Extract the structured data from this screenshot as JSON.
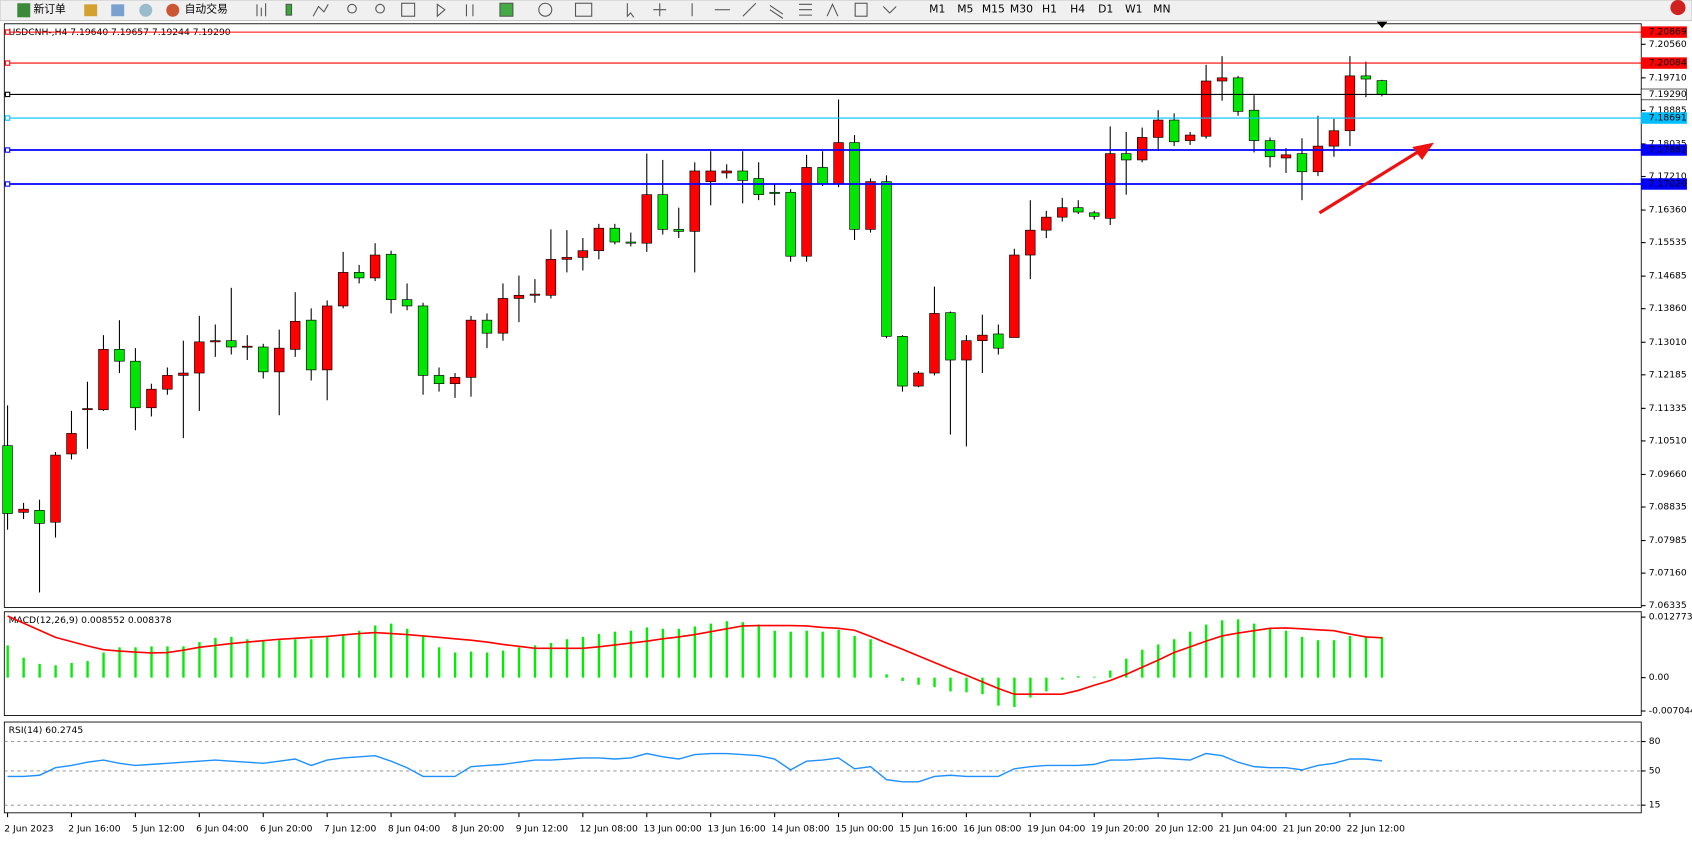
{
  "toolbar": {
    "new_order": "新订单",
    "auto_trading": "自动交易",
    "timeframes": [
      "M1",
      "M5",
      "M15",
      "M30",
      "H1",
      "H4",
      "D1",
      "W1",
      "MN"
    ]
  },
  "chart_data": [
    {
      "type": "candlestick",
      "title": "USDCNH-,H4 7.19640 7.19657 7.19244 7.19290",
      "up_color": "#ff0000",
      "down_color": "#00e600",
      "categories": [
        "2 Jun 2023",
        null,
        null,
        null,
        "2 Jun 16:00",
        null,
        null,
        null,
        "5 Jun 12:00",
        null,
        null,
        null,
        "6 Jun 04:00",
        null,
        null,
        null,
        "6 Jun 20:00",
        null,
        null,
        null,
        "7 Jun 12:00",
        null,
        null,
        null,
        "8 Jun 04:00",
        null,
        null,
        null,
        "8 Jun 20:00",
        null,
        null,
        null,
        "9 Jun 12:00",
        null,
        null,
        null,
        "12 Jun 08:00",
        null,
        null,
        null,
        "13 Jun 00:00",
        null,
        null,
        null,
        "13 Jun 16:00",
        null,
        null,
        null,
        "14 Jun 08:00",
        null,
        null,
        null,
        "15 Jun 00:00",
        null,
        null,
        null,
        "15 Jun 16:00",
        null,
        null,
        null,
        "16 Jun 08:00",
        null,
        null,
        null,
        "19 Jun 04:00",
        null,
        null,
        null,
        "19 Jun 20:00",
        null,
        null,
        null,
        "20 Jun 12:00",
        null,
        null,
        null,
        "21 Jun 04:00",
        null,
        null,
        null,
        "21 Jun 20:00",
        null,
        null,
        null,
        "22 Jun 12:00",
        null,
        null
      ],
      "open": [
        7.1039,
        7.087,
        7.0875,
        7.0845,
        7.1018,
        7.113,
        7.113,
        7.1283,
        7.1253,
        7.1135,
        7.1182,
        7.1217,
        7.1223,
        7.1302,
        7.1305,
        7.1289,
        7.1289,
        7.1226,
        7.1283,
        7.1357,
        7.1231,
        7.1393,
        7.1478,
        7.1464,
        7.1524,
        7.1409,
        7.1393,
        7.1217,
        7.1196,
        7.1212,
        7.1357,
        7.1324,
        7.1412,
        7.142,
        7.142,
        7.1511,
        7.1516,
        7.1533,
        7.159,
        7.1555,
        7.1552,
        7.1675,
        7.1587,
        7.1582,
        7.1708,
        7.173,
        7.1735,
        7.1716,
        7.1681,
        7.1681,
        7.1519,
        7.1744,
        7.1702,
        7.1807,
        7.1587,
        7.1708,
        7.1316,
        7.119,
        7.1223,
        7.1376,
        7.1256,
        7.1305,
        7.1322,
        7.1313,
        7.1522,
        7.1585,
        7.1618,
        7.1642,
        7.1629,
        7.1615,
        7.1779,
        7.1763,
        7.182,
        7.1864,
        7.1812,
        7.1823,
        7.1963,
        7.1971,
        7.1889,
        7.1812,
        7.1768,
        7.1779,
        7.1733,
        7.1798,
        7.1837,
        7.1976,
        7.1964
      ],
      "high": [
        7.1141,
        7.0894,
        7.0902,
        7.1023,
        7.1127,
        7.1201,
        7.1319,
        7.1357,
        7.1286,
        7.1196,
        7.1237,
        7.1305,
        7.1368,
        7.1346,
        7.1439,
        7.1319,
        7.1297,
        7.1333,
        7.1428,
        7.1387,
        7.1407,
        7.153,
        7.1497,
        7.1552,
        7.1533,
        7.145,
        7.1401,
        7.1237,
        7.1223,
        7.1368,
        7.1374,
        7.145,
        7.147,
        7.1461,
        7.1587,
        7.1585,
        7.1565,
        7.1601,
        7.1601,
        7.1579,
        7.1779,
        7.1763,
        7.1642,
        7.1757,
        7.1785,
        7.1752,
        7.1785,
        7.1757,
        7.1702,
        7.1689,
        7.1776,
        7.1785,
        7.1916,
        7.1826,
        7.1716,
        7.1724,
        7.1319,
        7.1228,
        7.1442,
        7.1379,
        7.1319,
        7.1371,
        7.1346,
        7.1538,
        7.1661,
        7.1634,
        7.1667,
        7.1661,
        7.1634,
        7.1848,
        7.1834,
        7.1845,
        7.1889,
        7.1881,
        7.1834,
        7.2004,
        7.2026,
        7.1976,
        7.1927,
        7.182,
        7.1793,
        7.1818,
        7.1875,
        7.1867,
        7.2026,
        7.2012,
        7.1966
      ],
      "low": [
        7.0826,
        7.0853,
        7.0667,
        7.0806,
        7.1004,
        7.1031,
        7.1127,
        7.1223,
        7.1078,
        7.1113,
        7.1168,
        7.1058,
        7.1127,
        7.1264,
        7.127,
        7.1256,
        7.1209,
        7.1116,
        7.1264,
        7.1204,
        7.1154,
        7.1387,
        7.145,
        7.1456,
        7.1374,
        7.1382,
        7.1168,
        7.1176,
        7.116,
        7.1163,
        7.1286,
        7.1305,
        7.1352,
        7.1401,
        7.1412,
        7.1478,
        7.1483,
        7.1511,
        7.1549,
        7.1544,
        7.153,
        7.1574,
        7.1565,
        7.1478,
        7.1648,
        7.1716,
        7.1653,
        7.1661,
        7.1648,
        7.1505,
        7.1505,
        7.1697,
        7.1694,
        7.156,
        7.1579,
        7.1311,
        7.1176,
        7.1187,
        7.1217,
        7.1067,
        7.1037,
        7.1223,
        7.127,
        7.1313,
        7.1461,
        7.1565,
        7.1607,
        7.1626,
        7.1612,
        7.1598,
        7.1675,
        7.1757,
        7.179,
        7.1798,
        7.1801,
        7.1817,
        7.1913,
        7.1875,
        7.1782,
        7.1744,
        7.173,
        7.1661,
        7.1722,
        7.1771,
        7.1798,
        7.1922,
        7.1924
      ],
      "close": [
        7.0867,
        7.0878,
        7.0842,
        7.1015,
        7.107,
        7.1133,
        7.1283,
        7.1253,
        7.1135,
        7.1182,
        7.1217,
        7.1223,
        7.1302,
        7.1305,
        7.1289,
        7.1291,
        7.1226,
        7.1286,
        7.1354,
        7.1231,
        7.1393,
        7.1478,
        7.1464,
        7.1522,
        7.1409,
        7.1393,
        7.1217,
        7.1196,
        7.1212,
        7.1357,
        7.1324,
        7.1412,
        7.142,
        7.1423,
        7.1511,
        7.1516,
        7.1533,
        7.159,
        7.1555,
        7.1552,
        7.1675,
        7.1587,
        7.1582,
        7.1735,
        7.1735,
        7.1735,
        7.1711,
        7.1675,
        7.1678,
        7.1519,
        7.1744,
        7.1702,
        7.1807,
        7.1587,
        7.1708,
        7.1316,
        7.119,
        7.1223,
        7.1374,
        7.1256,
        7.1305,
        7.1319,
        7.1286,
        7.1522,
        7.1585,
        7.1618,
        7.1642,
        7.1631,
        7.162,
        7.1779,
        7.1763,
        7.182,
        7.1864,
        7.1809,
        7.1826,
        7.1963,
        7.1971,
        7.1886,
        7.1812,
        7.1771,
        7.1776,
        7.1733,
        7.1798,
        7.1837,
        7.1976,
        7.1968,
        7.1929
      ],
      "ylim": [
        7.0629,
        7.2108
      ],
      "yticks": [
        {
          "value": 7.2056,
          "label": "7.20560"
        },
        {
          "value": 7.1971,
          "label": "7.19710"
        },
        {
          "value": 7.18885,
          "label": "7.18885"
        },
        {
          "value": 7.18035,
          "label": "7.18035"
        },
        {
          "value": 7.1721,
          "label": "7.17210"
        },
        {
          "value": 7.1636,
          "label": "7.16360"
        },
        7.15535,
        7.14685,
        {
          "value": 7.1386,
          "label": "7.13860"
        },
        {
          "value": 7.1301,
          "label": "7.13010"
        },
        7.12185,
        7.11335,
        {
          "value": 7.1051,
          "label": "7.10510"
        },
        {
          "value": 7.0966,
          "label": "7.09660"
        },
        7.08835,
        7.07985,
        {
          "value": 7.0716,
          "label": "7.07160"
        },
        7.06335
      ],
      "levels": [
        {
          "value": 7.20869,
          "label": "7.20869",
          "color": "#ff0000",
          "fill": "#ff0000"
        },
        {
          "value": 7.20084,
          "label": "7.20084",
          "color": "#ff0000",
          "fill": "#ff0000"
        },
        {
          "value": 7.1929,
          "label": "7.19290",
          "color": "#000000",
          "fill": "#ffffff"
        },
        {
          "value": 7.18691,
          "label": "7.18691",
          "color": "#00bfff",
          "fill": "#00bfff"
        },
        {
          "value": 7.17881,
          "label": "7.17881",
          "color": "#0000ff",
          "fill": "#0000ff"
        },
        {
          "value": 7.1702,
          "label": "7.17020",
          "color": "#0000ff",
          "fill": "#0000ff"
        }
      ]
    },
    {
      "type": "macd",
      "title": "MACD(12,26,9) 0.008552 0.008378",
      "series": [
        {
          "style": "bar",
          "color": "#00ee00",
          "values": [
            0.0068,
            0.0042,
            0.0029,
            0.0026,
            0.0031,
            0.0035,
            0.0053,
            0.0064,
            0.0064,
            0.0066,
            0.0066,
            0.0066,
            0.0075,
            0.0084,
            0.0086,
            0.0081,
            0.0077,
            0.0079,
            0.0081,
            0.0081,
            0.0086,
            0.0092,
            0.0099,
            0.011,
            0.0114,
            0.0103,
            0.0088,
            0.0064,
            0.0053,
            0.0055,
            0.0053,
            0.0057,
            0.0064,
            0.0068,
            0.0073,
            0.0081,
            0.0086,
            0.0092,
            0.0097,
            0.0099,
            0.0106,
            0.0103,
            0.0103,
            0.0108,
            0.0114,
            0.0119,
            0.0117,
            0.0112,
            0.0099,
            0.0097,
            0.0099,
            0.0097,
            0.0101,
            0.0088,
            0.0081,
            0.0007,
            -0.0007,
            -0.0015,
            -0.002,
            -0.0029,
            -0.0031,
            -0.0035,
            -0.0059,
            -0.0062,
            -0.0042,
            -0.0029,
            -0.0004,
            0.0003,
            0.0002,
            0.0015,
            0.004,
            0.0059,
            0.007,
            0.0081,
            0.0097,
            0.0112,
            0.0121,
            0.0123,
            0.0114,
            0.0103,
            0.0099,
            0.0086,
            0.0079,
            0.0079,
            0.0088,
            0.0087,
            0.0086
          ]
        },
        {
          "style": "line",
          "color": "#ff0000",
          "values": [
            0.013,
            0.0115,
            0.01,
            0.0085,
            0.0076,
            0.0067,
            0.0059,
            0.0056,
            0.0054,
            0.0052,
            0.0053,
            0.0058,
            0.0064,
            0.0068,
            0.0072,
            0.0075,
            0.0078,
            0.0081,
            0.0083,
            0.0085,
            0.0087,
            0.009,
            0.0093,
            0.0095,
            0.0093,
            0.0091,
            0.0088,
            0.0085,
            0.0082,
            0.0079,
            0.0075,
            0.007,
            0.0066,
            0.0062,
            0.0062,
            0.0062,
            0.0062,
            0.0065,
            0.0069,
            0.0073,
            0.0077,
            0.0082,
            0.0086,
            0.0091,
            0.0097,
            0.0103,
            0.0109,
            0.011,
            0.011,
            0.011,
            0.0109,
            0.0106,
            0.0104,
            0.01,
            0.0087,
            0.0073,
            0.006,
            0.0046,
            0.0032,
            0.0018,
            0.0005,
            -0.0009,
            -0.0023,
            -0.0035,
            -0.0035,
            -0.0035,
            -0.0035,
            -0.0027,
            -0.0016,
            -0.0006,
            0.0007,
            0.0022,
            0.0037,
            0.0053,
            0.0065,
            0.0077,
            0.0088,
            0.0094,
            0.0099,
            0.0104,
            0.0105,
            0.0103,
            0.0101,
            0.0099,
            0.0092,
            0.0086,
            0.0084
          ]
        }
      ],
      "ylim": [
        -0.008,
        0.0139
      ],
      "yticks": [
        0.012773,
        {
          "value": 0,
          "label": "0.00"
        },
        -0.007044
      ]
    },
    {
      "type": "line",
      "title": "RSI(14) 60.2745",
      "grid": true,
      "series": [
        {
          "color": "#1e90ff",
          "values": [
            44.4,
            44.4,
            45.6,
            53.3,
            55.6,
            58.9,
            61.1,
            57.8,
            55.6,
            56.7,
            57.8,
            58.9,
            60.0,
            61.1,
            60.0,
            58.9,
            57.8,
            60.0,
            62.2,
            55.6,
            61.1,
            63.3,
            64.4,
            65.6,
            60.0,
            53.3,
            44.4,
            44.4,
            44.4,
            54.4,
            55.6,
            56.7,
            58.9,
            61.1,
            61.1,
            62.2,
            63.3,
            63.3,
            62.2,
            63.3,
            67.8,
            64.4,
            62.2,
            66.7,
            67.8,
            67.8,
            66.7,
            65.6,
            62.2,
            51.1,
            60.0,
            61.1,
            63.3,
            52.2,
            54.4,
            41.1,
            38.9,
            38.9,
            44.4,
            45.6,
            44.4,
            44.4,
            44.4,
            52.2,
            54.4,
            55.6,
            55.6,
            55.6,
            56.7,
            61.1,
            61.1,
            62.2,
            63.3,
            62.2,
            61.1,
            67.8,
            65.6,
            58.9,
            54.4,
            53.3,
            53.3,
            51.1,
            55.6,
            57.8,
            62.2,
            62.2,
            60.3
          ]
        }
      ],
      "ylim": [
        7.2,
        100
      ],
      "yticks": [
        80,
        50,
        15
      ]
    }
  ]
}
